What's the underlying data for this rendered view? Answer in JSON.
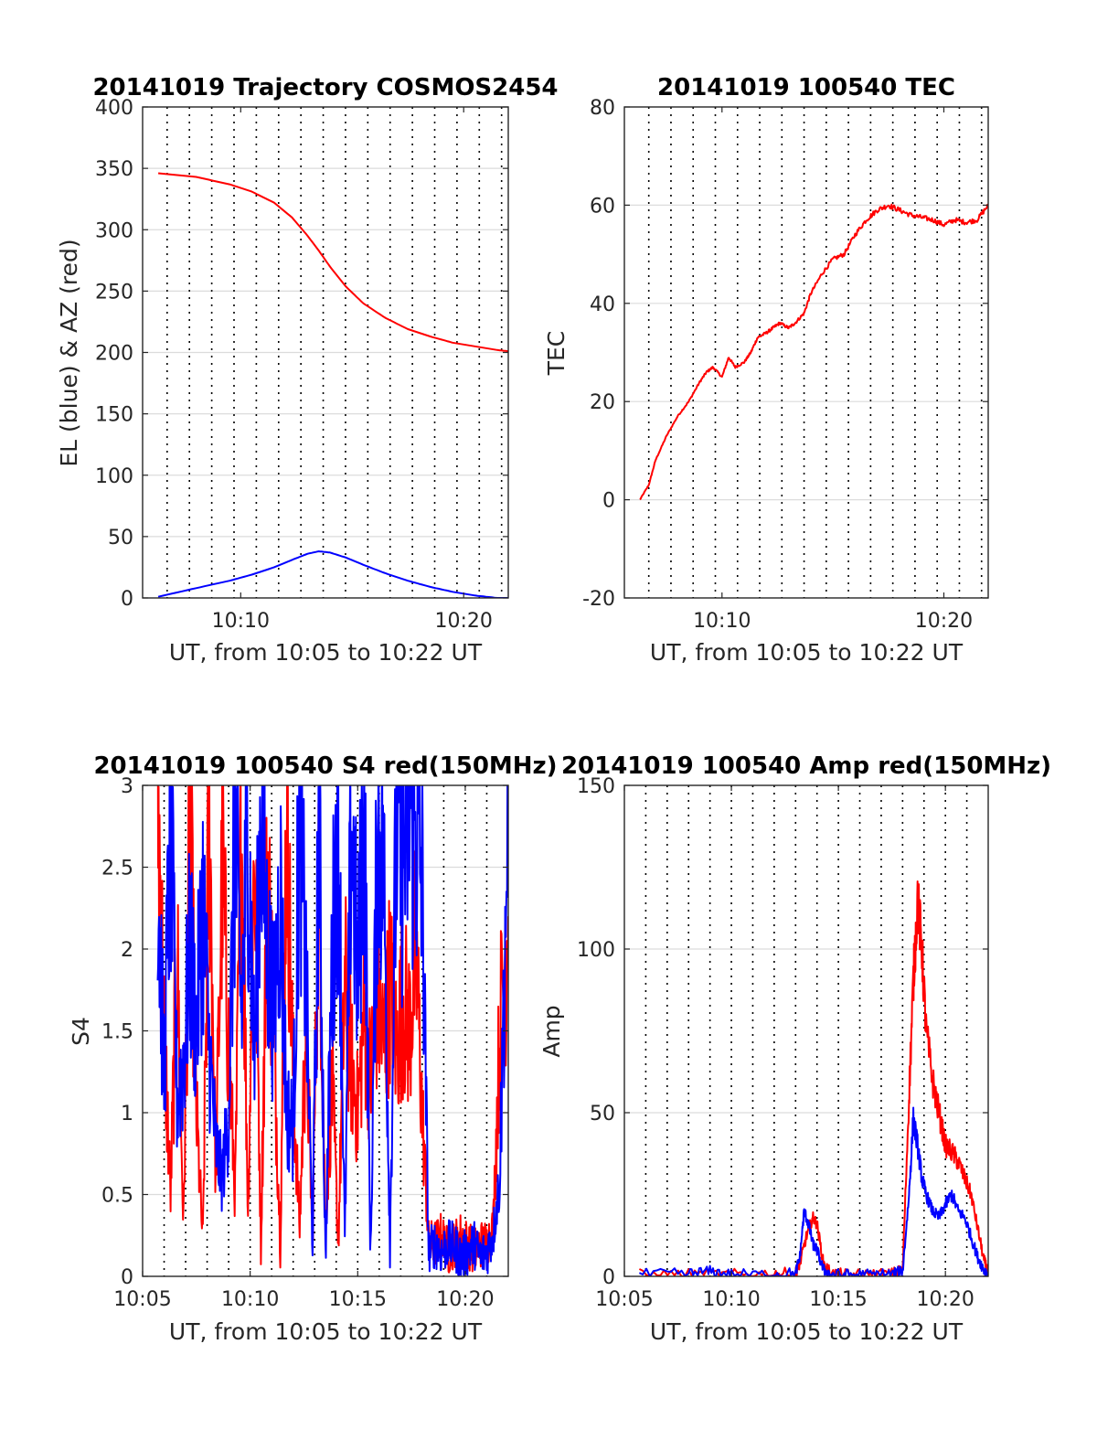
{
  "chart_data": [
    {
      "type": "line",
      "title": "20141019 Trajectory COSMOS2454",
      "xlabel": "UT, from 10:05 to 10:22 UT",
      "ylabel": "EL (blue) & AZ (red)",
      "xlim": [
        5.6,
        22.0
      ],
      "ylim": [
        0,
        400
      ],
      "xticks": [
        {
          "value": 10,
          "label": "10:10"
        },
        {
          "value": 20,
          "label": "10:20"
        }
      ],
      "yticks": [
        {
          "value": 0,
          "label": "0"
        },
        {
          "value": 50,
          "label": "50"
        },
        {
          "value": 100,
          "label": "100"
        },
        {
          "value": 150,
          "label": "150"
        },
        {
          "value": 200,
          "label": "200"
        },
        {
          "value": 250,
          "label": "250"
        },
        {
          "value": 300,
          "label": "300"
        },
        {
          "value": 350,
          "label": "350"
        },
        {
          "value": 400,
          "label": "400"
        }
      ],
      "vgrid": [
        6.7,
        7.7,
        8.7,
        9.7,
        10.7,
        11.7,
        12.7,
        13.7,
        14.7,
        15.7,
        16.7,
        17.7,
        18.7,
        19.7,
        20.7,
        21.7
      ],
      "noise": 0,
      "series": [
        {
          "color": "#ff0000",
          "x": [
            6.3,
            8,
            9.5,
            10.5,
            11.5,
            12.3,
            13,
            13.5,
            14,
            14.7,
            15.5,
            16.5,
            17.5,
            18.5,
            19.5,
            20.5,
            21.5,
            22
          ],
          "y": [
            346,
            343,
            337,
            331,
            322,
            310,
            295,
            283,
            270,
            254,
            240,
            228,
            219,
            213,
            208,
            205,
            202,
            201
          ]
        },
        {
          "color": "#0000ff",
          "x": [
            6.3,
            8,
            9.5,
            10.5,
            11.5,
            12.3,
            13,
            13.5,
            14,
            14.7,
            15.5,
            16.5,
            17.5,
            18.5,
            19.5,
            20.5,
            21.5,
            22
          ],
          "y": [
            1,
            8,
            14,
            19,
            25,
            31,
            36,
            38,
            37,
            33,
            27,
            20,
            14,
            9,
            5,
            2,
            0,
            0
          ]
        }
      ]
    },
    {
      "type": "line",
      "title": "20141019 100540 TEC",
      "xlabel": "UT, from 10:05 to 10:22 UT",
      "ylabel": "TEC",
      "xlim": [
        5.6,
        22.0
      ],
      "ylim": [
        -20,
        80
      ],
      "xticks": [
        {
          "value": 10,
          "label": "10:10"
        },
        {
          "value": 20,
          "label": "10:20"
        }
      ],
      "yticks": [
        {
          "value": -20,
          "label": "-20"
        },
        {
          "value": 0,
          "label": "0"
        },
        {
          "value": 20,
          "label": "20"
        },
        {
          "value": 40,
          "label": "40"
        },
        {
          "value": 60,
          "label": "60"
        },
        {
          "value": 80,
          "label": "80"
        }
      ],
      "vgrid": [
        6.7,
        7.7,
        8.7,
        9.7,
        10.7,
        11.7,
        12.7,
        13.7,
        14.7,
        15.7,
        16.7,
        17.7,
        18.7,
        19.7,
        20.7,
        21.7
      ],
      "noise": 0.4,
      "series": [
        {
          "color": "#ff0000",
          "x": [
            6.3,
            6.7,
            7.0,
            7.5,
            8.0,
            8.5,
            9.0,
            9.3,
            9.6,
            10.0,
            10.3,
            10.6,
            11.0,
            11.3,
            11.6,
            12.0,
            12.3,
            12.6,
            13.0,
            13.3,
            13.7,
            14.0,
            14.5,
            15.0,
            15.5,
            16.0,
            16.5,
            17.0,
            17.5,
            18.0,
            18.5,
            19.0,
            19.5,
            20.0,
            20.5,
            21.0,
            21.5,
            22.0
          ],
          "y": [
            0,
            3,
            8,
            13,
            17,
            20,
            24,
            26,
            27,
            25,
            29,
            27,
            28,
            30,
            33,
            34,
            35,
            36,
            35,
            36,
            38,
            42,
            46,
            49,
            50,
            54,
            57,
            59,
            60,
            59,
            58,
            57.5,
            57,
            56,
            57,
            56.5,
            57,
            60
          ]
        }
      ]
    },
    {
      "type": "line",
      "title": "20141019 100540 S4 red(150MHz)",
      "xlabel": "UT, from 10:05 to 10:22 UT",
      "ylabel": "S4",
      "xlim": [
        5.0,
        22.0
      ],
      "ylim": [
        0,
        3
      ],
      "xticks": [
        {
          "value": 5,
          "label": "10:05"
        },
        {
          "value": 10,
          "label": "10:10"
        },
        {
          "value": 15,
          "label": "10:15"
        },
        {
          "value": 20,
          "label": "10:20"
        }
      ],
      "yticks": [
        {
          "value": 0,
          "label": "0"
        },
        {
          "value": 0.5,
          "label": "0.5"
        },
        {
          "value": 1,
          "label": "1"
        },
        {
          "value": 1.5,
          "label": "1.5"
        },
        {
          "value": 2,
          "label": "2"
        },
        {
          "value": 2.5,
          "label": "2.5"
        },
        {
          "value": 3,
          "label": "3"
        }
      ],
      "vgrid": [
        6.0,
        7.0,
        8.0,
        9.0,
        10.0,
        11.0,
        12.0,
        13.0,
        14.0,
        15.0,
        16.0,
        17.0,
        18.0,
        19.0,
        20.0,
        21.0
      ],
      "noise": 0.5,
      "series": [
        {
          "color": "#ff0000",
          "x": [
            5.7,
            6.0,
            6.3,
            6.6,
            6.9,
            7.2,
            7.5,
            7.8,
            8.1,
            8.4,
            8.7,
            9.0,
            9.3,
            9.6,
            9.9,
            10.2,
            10.5,
            10.8,
            11.1,
            11.4,
            11.7,
            12.0,
            12.3,
            12.6,
            12.9,
            13.2,
            13.5,
            13.8,
            14.1,
            14.4,
            14.7,
            15.0,
            15.3,
            15.6,
            15.9,
            16.2,
            16.5,
            16.8,
            17.1,
            17.4,
            17.7,
            18.0,
            18.3,
            18.6,
            18.9,
            19.2,
            19.5,
            19.8,
            20.1,
            20.4,
            20.7,
            21.0,
            21.3,
            21.6,
            22.0
          ],
          "y": [
            3,
            1.5,
            0.5,
            2,
            0.3,
            2.8,
            1,
            0.2,
            2.9,
            0.6,
            2.5,
            1.4,
            0.5,
            2.8,
            0.4,
            2.7,
            0.2,
            2.5,
            1.5,
            0.2,
            2.9,
            1.2,
            0.3,
            1.6,
            0.2,
            2.6,
            0.3,
            1.2,
            0.2,
            1.8,
            1.3,
            1.0,
            1.6,
            1.2,
            1.7,
            1.4,
            1.8,
            1.4,
            1.7,
            1.5,
            2.0,
            1.0,
            0.2,
            0.2,
            0.25,
            0.15,
            0.2,
            0.25,
            0.2,
            0.15,
            0.2,
            0.2,
            0.3,
            1.5,
            2.2
          ]
        },
        {
          "color": "#0000ff",
          "x": [
            5.7,
            6.0,
            6.3,
            6.6,
            6.9,
            7.2,
            7.5,
            7.8,
            8.1,
            8.4,
            8.7,
            9.0,
            9.3,
            9.6,
            9.9,
            10.2,
            10.5,
            10.8,
            11.1,
            11.4,
            11.7,
            12.0,
            12.3,
            12.6,
            12.9,
            13.2,
            13.5,
            13.8,
            14.1,
            14.4,
            14.7,
            15.0,
            15.3,
            15.6,
            15.9,
            16.2,
            16.5,
            16.8,
            17.1,
            17.4,
            17.7,
            18.0,
            18.3,
            18.6,
            18.9,
            19.2,
            19.5,
            19.8,
            20.1,
            20.4,
            20.7,
            21.0,
            21.3,
            21.6,
            22.0
          ],
          "y": [
            2.5,
            1.2,
            2.8,
            1.1,
            1.3,
            2.0,
            1.5,
            2.3,
            1.4,
            0.8,
            0.6,
            1.0,
            2.7,
            1.6,
            2.8,
            1.3,
            2.9,
            2.0,
            1.6,
            2.4,
            1.0,
            0.9,
            2.9,
            1.8,
            0.2,
            2.8,
            0.1,
            1.9,
            2.9,
            0.2,
            2.8,
            1.8,
            2.9,
            0.1,
            2.7,
            2.6,
            0.2,
            2.8,
            2.5,
            2.9,
            2.7,
            2.4,
            0.15,
            0.2,
            0.15,
            0.2,
            0.18,
            0.12,
            0.15,
            0.2,
            0.12,
            0.15,
            0.25,
            0.6,
            2.9
          ]
        }
      ]
    },
    {
      "type": "line",
      "title": "20141019 100540 Amp red(150MHz)",
      "xlabel": "UT, from 10:05 to 10:22 UT",
      "ylabel": "Amp",
      "xlim": [
        5.0,
        22.0
      ],
      "ylim": [
        0,
        150
      ],
      "xticks": [
        {
          "value": 5,
          "label": "10:05"
        },
        {
          "value": 10,
          "label": "10:10"
        },
        {
          "value": 15,
          "label": "10:15"
        },
        {
          "value": 20,
          "label": "10:20"
        }
      ],
      "yticks": [
        {
          "value": 0,
          "label": "0"
        },
        {
          "value": 50,
          "label": "50"
        },
        {
          "value": 100,
          "label": "100"
        },
        {
          "value": 150,
          "label": "150"
        }
      ],
      "vgrid": [
        6.0,
        7.0,
        8.0,
        9.0,
        10.0,
        11.0,
        12.0,
        13.0,
        14.0,
        15.0,
        16.0,
        17.0,
        18.0,
        19.0,
        20.0,
        21.0
      ],
      "noise": 6,
      "series": [
        {
          "color": "#ff0000",
          "x": [
            5.7,
            8.0,
            10.0,
            12.0,
            13.0,
            13.2,
            13.5,
            13.8,
            14.0,
            14.3,
            14.7,
            15.5,
            16.5,
            17.5,
            18.0,
            18.3,
            18.5,
            18.7,
            18.9,
            19.1,
            19.4,
            19.7,
            20.0,
            20.3,
            20.6,
            20.9,
            21.2,
            21.5,
            21.8,
            22.0
          ],
          "y": [
            0.5,
            0.5,
            0.5,
            0.8,
            1,
            4,
            12,
            18,
            16,
            4,
            0.8,
            0.5,
            0.5,
            0.8,
            2,
            55,
            90,
            115,
            100,
            75,
            60,
            50,
            40,
            38,
            35,
            30,
            25,
            15,
            5,
            1
          ]
        },
        {
          "color": "#0000ff",
          "x": [
            5.7,
            8.0,
            9.0,
            10.0,
            12.0,
            13.0,
            13.2,
            13.4,
            13.6,
            13.8,
            14.0,
            14.3,
            14.7,
            15.5,
            16.5,
            17.5,
            18.0,
            18.3,
            18.5,
            18.7,
            18.9,
            19.1,
            19.4,
            19.7,
            20.0,
            20.3,
            20.6,
            20.9,
            21.2,
            21.5,
            21.8,
            22.0
          ],
          "y": [
            0.5,
            0.8,
            1.5,
            0.5,
            0.5,
            1,
            6,
            20,
            16,
            10,
            8,
            2,
            0.5,
            0.5,
            0.5,
            0.8,
            1.5,
            25,
            48,
            40,
            30,
            25,
            20,
            18,
            22,
            25,
            20,
            18,
            12,
            6,
            2,
            0.5
          ]
        }
      ]
    }
  ]
}
